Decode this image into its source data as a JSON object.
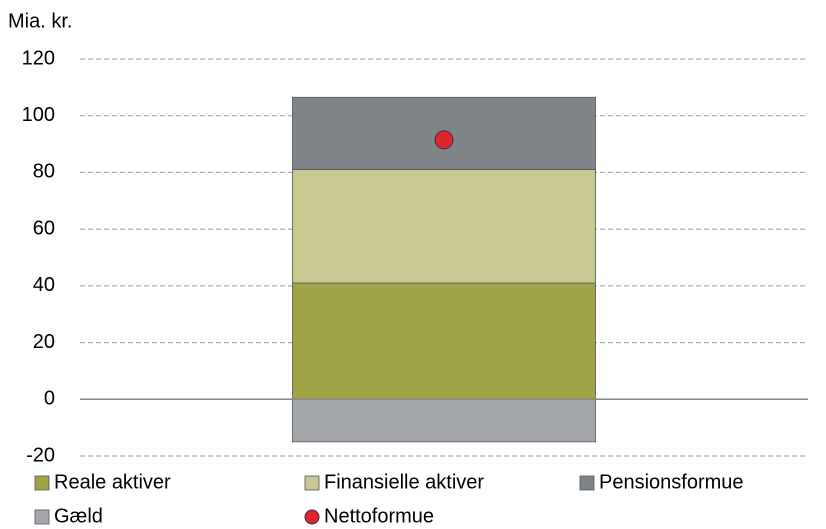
{
  "chart_data": {
    "type": "bar",
    "stacked": true,
    "y_label": "Mia. kr.",
    "categories": [
      null
    ],
    "series": [
      {
        "name": "Reale aktiver",
        "color": "#9fa345",
        "values": [
          41
        ]
      },
      {
        "name": "Finansielle aktiver",
        "color": "#c7c892",
        "values": [
          40
        ]
      },
      {
        "name": "Pensionsformue",
        "color": "#7f8489",
        "values": [
          25.5
        ]
      },
      {
        "name": "Gæld",
        "color": "#a3a6aa",
        "values": [
          -15
        ]
      },
      {
        "name": "Nettoformue",
        "color": "#e0242b",
        "type": "scatter",
        "values": [
          91.5
        ]
      }
    ],
    "ylim": [
      -20,
      120
    ],
    "yticks": [
      -20,
      0,
      20,
      40,
      60,
      80,
      100,
      120
    ],
    "grid": true,
    "legend": "bottom"
  }
}
